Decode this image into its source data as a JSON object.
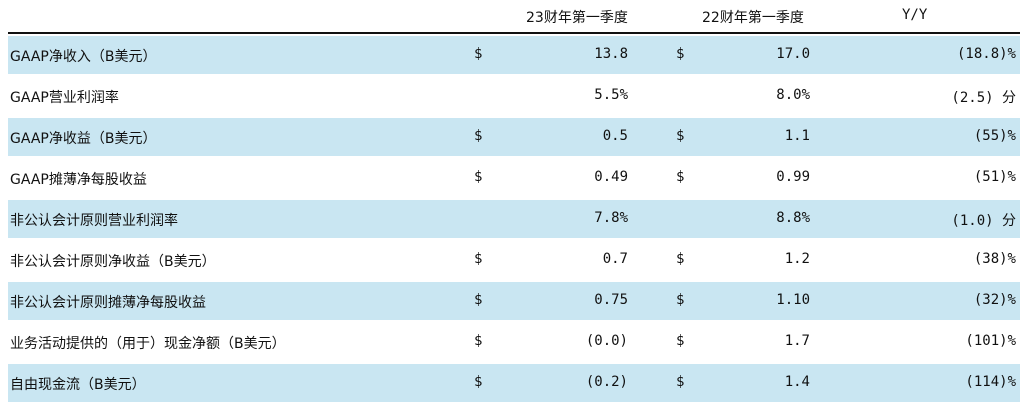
{
  "header": {
    "col_q1_23": "23财年第一季度",
    "col_q1_22": "22财年第一季度",
    "col_yy": "Y/Y"
  },
  "rows": [
    {
      "label": "GAAP净收入（B美元）",
      "d1": "$",
      "v1": "13.8",
      "d2": "$",
      "v2": "17.0",
      "yy": "(18.8)%",
      "shaded": true
    },
    {
      "label": "GAAP营业利润率",
      "d1": "",
      "v1": "5.5%",
      "d2": "",
      "v2": "8.0%",
      "yy": "(2.5) 分",
      "shaded": false
    },
    {
      "label": "GAAP净收益（B美元）",
      "d1": "$",
      "v1": "0.5",
      "d2": "$",
      "v2": "1.1",
      "yy": "(55)%",
      "shaded": true
    },
    {
      "label": "GAAP摊薄净每股收益",
      "d1": "$",
      "v1": "0.49",
      "d2": "$",
      "v2": "0.99",
      "yy": "(51)%",
      "shaded": false
    },
    {
      "label": "非公认会计原则营业利润率",
      "d1": "",
      "v1": "7.8%",
      "d2": "",
      "v2": "8.8%",
      "yy": "(1.0) 分",
      "shaded": true
    },
    {
      "label": "非公认会计原则净收益（B美元）",
      "d1": "$",
      "v1": "0.7",
      "d2": "$",
      "v2": "1.2",
      "yy": "(38)%",
      "shaded": false
    },
    {
      "label": "非公认会计原则摊薄净每股收益",
      "d1": "$",
      "v1": "0.75",
      "d2": "$",
      "v2": "1.10",
      "yy": "(32)%",
      "shaded": true
    },
    {
      "label": "业务活动提供的（用于）现金净额（B美元）",
      "d1": "$",
      "v1": "(0.0)",
      "d2": "$",
      "v2": "1.7",
      "yy": "(101)%",
      "shaded": false
    },
    {
      "label": "自由现金流（B美元）",
      "d1": "$",
      "v1": "(0.2)",
      "d2": "$",
      "v2": "1.4",
      "yy": "(114)%",
      "shaded": true
    }
  ]
}
